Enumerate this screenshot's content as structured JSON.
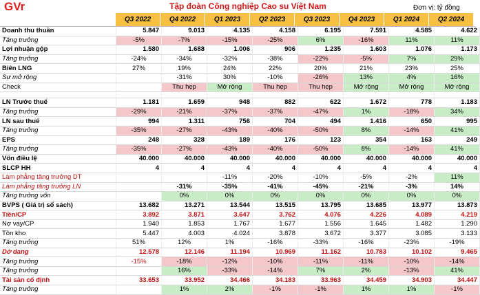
{
  "header": {
    "logo": "GVr",
    "title": "Tập đoàn Công nghiệp Cao su Việt Nam",
    "unit": "Đơn vị: tỷ đồng",
    "quarters": [
      "Q3 2022",
      "Q4 2022",
      "Q1 2023",
      "Q2 2023",
      "Q3 2023",
      "Q4 2023",
      "Q1 2024",
      "Q2 2024"
    ]
  },
  "rows": [
    {
      "label": "Doanh thu thuần",
      "style": "b",
      "align": "r",
      "cells": [
        {
          "t": "5.847"
        },
        {
          "t": "9.013"
        },
        {
          "t": "4.135"
        },
        {
          "t": "4.158"
        },
        {
          "t": "6.195"
        },
        {
          "t": "7.591"
        },
        {
          "t": "4.585"
        },
        {
          "t": "4.622"
        }
      ]
    },
    {
      "label": "Tăng trưởng",
      "style": "i",
      "align": "c",
      "cells": [
        {
          "t": "-5%",
          "bg": "pink"
        },
        {
          "t": "-7%",
          "bg": "pink"
        },
        {
          "t": "-15%",
          "bg": "pink"
        },
        {
          "t": "-25%",
          "bg": "pink"
        },
        {
          "t": "6%",
          "bg": "green"
        },
        {
          "t": "-16%",
          "bg": "pink"
        },
        {
          "t": "11%",
          "bg": "green"
        },
        {
          "t": "11%",
          "bg": "green"
        }
      ]
    },
    {
      "label": "Lợi nhuận gộp",
      "style": "b",
      "align": "r",
      "cells": [
        {
          "t": "1.580"
        },
        {
          "t": "1.688"
        },
        {
          "t": "1.006"
        },
        {
          "t": "906"
        },
        {
          "t": "1.235"
        },
        {
          "t": "1.603"
        },
        {
          "t": "1.076"
        },
        {
          "t": "1.173"
        }
      ]
    },
    {
      "label": "Tăng trưởng",
      "style": "i",
      "align": "c",
      "cells": [
        {
          "t": "-24%"
        },
        {
          "t": "-34%"
        },
        {
          "t": "-32%"
        },
        {
          "t": "-38%"
        },
        {
          "t": "-22%",
          "bg": "pink"
        },
        {
          "t": "-5%",
          "bg": "pink"
        },
        {
          "t": "7%",
          "bg": "green"
        },
        {
          "t": "29%",
          "bg": "green"
        }
      ]
    },
    {
      "label": "Biên LNG",
      "style": "b",
      "align": "c",
      "cells": [
        {
          "t": "27%"
        },
        {
          "t": "19%"
        },
        {
          "t": "24%"
        },
        {
          "t": "22%"
        },
        {
          "t": "20%"
        },
        {
          "t": "21%"
        },
        {
          "t": "23%"
        },
        {
          "t": "25%"
        }
      ]
    },
    {
      "label": "Sự mở rộng",
      "style": "i",
      "align": "c",
      "cells": [
        {
          "t": ""
        },
        {
          "t": "-31%"
        },
        {
          "t": "30%"
        },
        {
          "t": "-10%"
        },
        {
          "t": "-26%",
          "bg": "pink"
        },
        {
          "t": "13%",
          "bg": "green"
        },
        {
          "t": "4%",
          "bg": "green"
        },
        {
          "t": "16%",
          "bg": "green"
        }
      ]
    },
    {
      "label": "Check",
      "style": "bi",
      "align": "c",
      "cells": [
        {
          "t": ""
        },
        {
          "t": "Thu hẹp",
          "bg": "pink"
        },
        {
          "t": "Mở rộng",
          "bg": "green"
        },
        {
          "t": "Thu hẹp",
          "bg": "pink"
        },
        {
          "t": "Thu hẹp",
          "bg": "pink"
        },
        {
          "t": "Mở rộng",
          "bg": "green"
        },
        {
          "t": "Mở rộng",
          "bg": "green"
        },
        {
          "t": "Mở rộng",
          "bg": "green"
        }
      ]
    },
    {
      "label": "",
      "style": "",
      "align": "r",
      "spacer": true,
      "cells": [
        {
          "t": ""
        },
        {
          "t": ""
        },
        {
          "t": ""
        },
        {
          "t": ""
        },
        {
          "t": ""
        },
        {
          "t": ""
        },
        {
          "t": ""
        },
        {
          "t": ""
        }
      ]
    },
    {
      "label": "LN Trước thuế",
      "style": "b",
      "align": "r",
      "cells": [
        {
          "t": "1.181"
        },
        {
          "t": "1.659"
        },
        {
          "t": "948"
        },
        {
          "t": "882"
        },
        {
          "t": "622"
        },
        {
          "t": "1.672"
        },
        {
          "t": "778"
        },
        {
          "t": "1.183"
        }
      ]
    },
    {
      "label": "Tăng trưởng",
      "style": "i",
      "align": "c",
      "cells": [
        {
          "t": "-29%",
          "bg": "pink"
        },
        {
          "t": "-21%",
          "bg": "pink"
        },
        {
          "t": "-37%",
          "bg": "pink"
        },
        {
          "t": "-37%",
          "bg": "pink"
        },
        {
          "t": "-47%",
          "bg": "pink"
        },
        {
          "t": "1%",
          "bg": "green"
        },
        {
          "t": "-18%",
          "bg": "pink"
        },
        {
          "t": "34%",
          "bg": "green"
        }
      ]
    },
    {
      "label": "LN sau thuế",
      "style": "b",
      "align": "r",
      "cells": [
        {
          "t": "994"
        },
        {
          "t": "1.311"
        },
        {
          "t": "756"
        },
        {
          "t": "704"
        },
        {
          "t": "494"
        },
        {
          "t": "1.416"
        },
        {
          "t": "650"
        },
        {
          "t": "995"
        }
      ]
    },
    {
      "label": "Tăng trưởng",
      "style": "i",
      "align": "c",
      "cells": [
        {
          "t": "-35%",
          "bg": "pink"
        },
        {
          "t": "-27%",
          "bg": "pink"
        },
        {
          "t": "-43%",
          "bg": "pink"
        },
        {
          "t": "-40%",
          "bg": "pink"
        },
        {
          "t": "-50%",
          "bg": "pink"
        },
        {
          "t": "8%",
          "bg": "green"
        },
        {
          "t": "-14%",
          "bg": "pink"
        },
        {
          "t": "41%",
          "bg": "green"
        }
      ]
    },
    {
      "label": "EPS",
      "style": "b",
      "align": "r",
      "cells": [
        {
          "t": "248"
        },
        {
          "t": "328"
        },
        {
          "t": "189"
        },
        {
          "t": "176"
        },
        {
          "t": "123"
        },
        {
          "t": "354"
        },
        {
          "t": "163"
        },
        {
          "t": "249"
        }
      ]
    },
    {
      "label": "Tăng trưởng",
      "style": "i",
      "align": "c",
      "cells": [
        {
          "t": "-35%",
          "bg": "pink"
        },
        {
          "t": "-27%",
          "bg": "pink"
        },
        {
          "t": "-43%",
          "bg": "pink"
        },
        {
          "t": "-40%",
          "bg": "pink"
        },
        {
          "t": "-50%",
          "bg": "pink"
        },
        {
          "t": "8%",
          "bg": "green"
        },
        {
          "t": "-14%",
          "bg": "pink"
        },
        {
          "t": "41%",
          "bg": "green"
        }
      ]
    },
    {
      "label": "Vốn điều lệ",
      "style": "b",
      "align": "r",
      "cells": [
        {
          "t": "40.000"
        },
        {
          "t": "40.000"
        },
        {
          "t": "40.000"
        },
        {
          "t": "40.000"
        },
        {
          "t": "40.000"
        },
        {
          "t": "40.000"
        },
        {
          "t": "40.000"
        },
        {
          "t": "40.000"
        }
      ]
    },
    {
      "label": "SLCP HH",
      "style": "b",
      "align": "r",
      "cells": [
        {
          "t": "4"
        },
        {
          "t": "4"
        },
        {
          "t": "4"
        },
        {
          "t": "4"
        },
        {
          "t": "4"
        },
        {
          "t": "4"
        },
        {
          "t": "4"
        },
        {
          "t": "4"
        }
      ]
    },
    {
      "label": "Làm phẳng tăng trưởng DT",
      "style": "red",
      "align": "c",
      "cells": [
        {
          "t": ""
        },
        {
          "t": ""
        },
        {
          "t": "-11%"
        },
        {
          "t": "-20%"
        },
        {
          "t": "-10%"
        },
        {
          "t": "-5%"
        },
        {
          "t": "-2%"
        },
        {
          "t": "11%",
          "bg": "green"
        }
      ]
    },
    {
      "label": "Làm phẳng tăng trưởng LN",
      "style": "red i",
      "align": "c",
      "cells": [
        {
          "t": ""
        },
        {
          "t": "-31%",
          "b": true
        },
        {
          "t": "-35%",
          "b": true
        },
        {
          "t": "-41%",
          "b": true
        },
        {
          "t": "-45%",
          "b": true
        },
        {
          "t": "-21%",
          "b": true
        },
        {
          "t": "-3%",
          "b": true
        },
        {
          "t": "14%",
          "b": true
        }
      ]
    },
    {
      "label": "Tăng trưởng vốn",
      "style": "i",
      "align": "c",
      "cells": [
        {
          "t": ""
        },
        {
          "t": "0%",
          "bg": "green"
        },
        {
          "t": "0%",
          "bg": "green"
        },
        {
          "t": "0%",
          "bg": "green"
        },
        {
          "t": "0%",
          "bg": "green"
        },
        {
          "t": "0%",
          "bg": "green"
        },
        {
          "t": "0%",
          "bg": "green"
        },
        {
          "t": "0%",
          "bg": "green"
        }
      ]
    },
    {
      "label": "BVPS ( Giá trị sổ sách)",
      "style": "b",
      "align": "r",
      "cells": [
        {
          "t": "13.682"
        },
        {
          "t": "13.271"
        },
        {
          "t": "13.544"
        },
        {
          "t": "13.515"
        },
        {
          "t": "13.795"
        },
        {
          "t": "13.685"
        },
        {
          "t": "13.977"
        },
        {
          "t": "13.873"
        }
      ]
    },
    {
      "label": "Tiền/CP",
      "style": "b red",
      "align": "r",
      "cells": [
        {
          "t": "3.892",
          "c": "red"
        },
        {
          "t": "3.871",
          "c": "red"
        },
        {
          "t": "3.647",
          "c": "red"
        },
        {
          "t": "3.762",
          "c": "red"
        },
        {
          "t": "4.076",
          "c": "red"
        },
        {
          "t": "4.226",
          "c": "red"
        },
        {
          "t": "4.089",
          "c": "red"
        },
        {
          "t": "4.219",
          "c": "red"
        }
      ]
    },
    {
      "label": "Nợ vay/CP",
      "style": "",
      "align": "r",
      "cells": [
        {
          "t": "1.940"
        },
        {
          "t": "1.853"
        },
        {
          "t": "1.767"
        },
        {
          "t": "1.677"
        },
        {
          "t": "1.556"
        },
        {
          "t": "1.645"
        },
        {
          "t": "1.482"
        },
        {
          "t": "1.290"
        }
      ]
    },
    {
      "label": "Tồn kho",
      "style": "",
      "align": "r",
      "cells": [
        {
          "t": "5.447"
        },
        {
          "t": "4.003"
        },
        {
          "t": "4.024"
        },
        {
          "t": "3.878"
        },
        {
          "t": "3.672"
        },
        {
          "t": "3.377"
        },
        {
          "t": "3.085"
        },
        {
          "t": "3.133"
        }
      ]
    },
    {
      "label": "Tăng trưởng",
      "style": "i",
      "align": "c",
      "cells": [
        {
          "t": "51%"
        },
        {
          "t": "12%"
        },
        {
          "t": "1%"
        },
        {
          "t": "-16%"
        },
        {
          "t": "-33%"
        },
        {
          "t": "-16%"
        },
        {
          "t": "-23%"
        },
        {
          "t": "-19%"
        }
      ]
    },
    {
      "label": "Dở dang",
      "style": "b i red",
      "align": "r",
      "cells": [
        {
          "t": "12.578"
        },
        {
          "t": "12.146"
        },
        {
          "t": "11.194"
        },
        {
          "t": "10.969"
        },
        {
          "t": "11.162"
        },
        {
          "t": "10.783"
        },
        {
          "t": "10.102"
        },
        {
          "t": "9.465"
        }
      ]
    },
    {
      "label": "Tăng trưởng",
      "style": "i",
      "align": "c",
      "cells": [
        {
          "t": "-15%",
          "c": "red"
        },
        {
          "t": "-18%",
          "bg": "pink"
        },
        {
          "t": "-12%",
          "bg": "pink"
        },
        {
          "t": "-10%",
          "bg": "pink"
        },
        {
          "t": "-11%",
          "bg": "pink"
        },
        {
          "t": "-11%",
          "bg": "pink"
        },
        {
          "t": "-10%",
          "bg": "pink"
        },
        {
          "t": "-14%",
          "bg": "pink"
        }
      ]
    },
    {
      "label": "Tăng trưởng",
      "style": "i",
      "align": "c",
      "cells": [
        {
          "t": ""
        },
        {
          "t": "16%",
          "bg": "green"
        },
        {
          "t": "-33%",
          "bg": "pink"
        },
        {
          "t": "-14%",
          "bg": "pink"
        },
        {
          "t": "7%",
          "bg": "green"
        },
        {
          "t": "2%",
          "bg": "green"
        },
        {
          "t": "-13%",
          "bg": "pink"
        },
        {
          "t": "41%",
          "bg": "green"
        }
      ]
    },
    {
      "label": "Tài sản cố định",
      "style": "b red",
      "align": "r",
      "cells": [
        {
          "t": "33.653"
        },
        {
          "t": "33.952"
        },
        {
          "t": "34.466"
        },
        {
          "t": "34.183"
        },
        {
          "t": "33.963"
        },
        {
          "t": "34.459"
        },
        {
          "t": "34.903"
        },
        {
          "t": "34.447"
        }
      ]
    },
    {
      "label": "Tăng trưởng",
      "style": "i",
      "align": "c",
      "cells": [
        {
          "t": ""
        },
        {
          "t": "1%",
          "bg": "green"
        },
        {
          "t": "2%",
          "bg": "green"
        },
        {
          "t": "-1%",
          "bg": "pink"
        },
        {
          "t": "-1%",
          "bg": "pink"
        },
        {
          "t": "1%",
          "bg": "green"
        },
        {
          "t": "1%",
          "bg": "green"
        },
        {
          "t": "-1%",
          "bg": "pink"
        }
      ]
    }
  ]
}
